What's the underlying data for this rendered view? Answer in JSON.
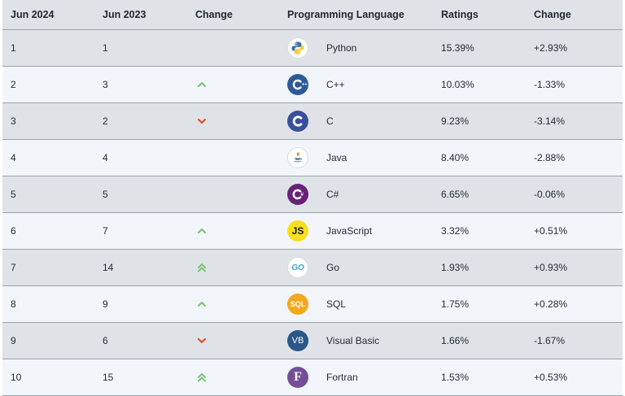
{
  "table": {
    "headers": {
      "rank_current": "Jun 2024",
      "rank_previous": "Jun 2023",
      "change": "Change",
      "language": "Programming Language",
      "ratings": "Ratings",
      "rating_change": "Change"
    },
    "rows": [
      {
        "rank_current": "1",
        "rank_previous": "1",
        "trend": "none",
        "language": "Python",
        "icon": "python-logo-icon",
        "ratings": "15.39%",
        "rating_change": "+2.93%"
      },
      {
        "rank_current": "2",
        "rank_previous": "3",
        "trend": "up",
        "language": "C++",
        "icon": "cplusplus-logo-icon",
        "ratings": "10.03%",
        "rating_change": "-1.33%"
      },
      {
        "rank_current": "3",
        "rank_previous": "2",
        "trend": "down",
        "language": "C",
        "icon": "c-logo-icon",
        "ratings": "9.23%",
        "rating_change": "-3.14%"
      },
      {
        "rank_current": "4",
        "rank_previous": "4",
        "trend": "none",
        "language": "Java",
        "icon": "java-logo-icon",
        "ratings": "8.40%",
        "rating_change": "-2.88%"
      },
      {
        "rank_current": "5",
        "rank_previous": "5",
        "trend": "none",
        "language": "C#",
        "icon": "csharp-logo-icon",
        "ratings": "6.65%",
        "rating_change": "-0.06%"
      },
      {
        "rank_current": "6",
        "rank_previous": "7",
        "trend": "up",
        "language": "JavaScript",
        "icon": "javascript-logo-icon",
        "ratings": "3.32%",
        "rating_change": "+0.51%"
      },
      {
        "rank_current": "7",
        "rank_previous": "14",
        "trend": "double-up",
        "language": "Go",
        "icon": "go-logo-icon",
        "ratings": "1.93%",
        "rating_change": "+0.93%"
      },
      {
        "rank_current": "8",
        "rank_previous": "9",
        "trend": "up",
        "language": "SQL",
        "icon": "sql-logo-icon",
        "ratings": "1.75%",
        "rating_change": "+0.28%"
      },
      {
        "rank_current": "9",
        "rank_previous": "6",
        "trend": "down",
        "language": "Visual Basic",
        "icon": "visual-basic-logo-icon",
        "ratings": "1.66%",
        "rating_change": "-1.67%"
      },
      {
        "rank_current": "10",
        "rank_previous": "15",
        "trend": "double-up",
        "language": "Fortran",
        "icon": "fortran-logo-icon",
        "ratings": "1.53%",
        "rating_change": "+0.53%"
      }
    ],
    "logo_text": {
      "javascript": "JS",
      "go": "GO",
      "sql": "SQL",
      "visual_basic": "VB",
      "fortran": "F"
    },
    "colors": {
      "header_bg": "#dfe3e8",
      "row_odd_bg": "#dfe3e8",
      "row_even_bg": "#f2f6fa",
      "row_border": "#9aa3ad",
      "trend_up": "#7cc576",
      "trend_down": "#d9512c"
    }
  }
}
